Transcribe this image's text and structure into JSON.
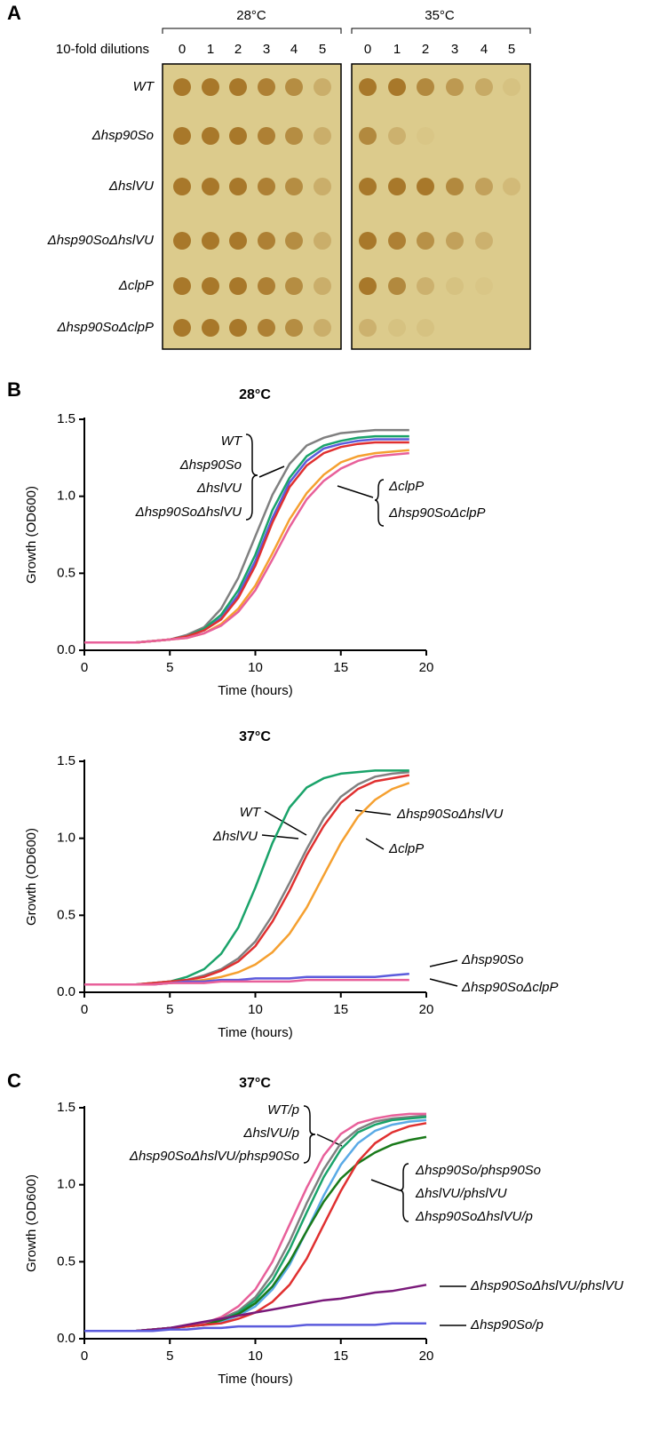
{
  "panel_a": {
    "label": "A",
    "temperatures": [
      "28°C",
      "35°C"
    ],
    "dilution_label": "10-fold dilutions",
    "dilutions": [
      0,
      1,
      2,
      3,
      4,
      5
    ],
    "strains": [
      "WT",
      "Δhsp90So",
      "ΔhslVU",
      "Δhsp90SoΔhslVU",
      "ΔclpP",
      "Δhsp90SoΔclpP"
    ]
  },
  "panel_b_label": "B",
  "panel_c_label": "C",
  "chart_data": [
    {
      "type": "line",
      "title": "28°C",
      "x_label": "Time (hours)",
      "y_label": "Growth (OD600)",
      "x": [
        0,
        1,
        2,
        3,
        4,
        5,
        6,
        7,
        8,
        9,
        10,
        11,
        12,
        13,
        14,
        15,
        16,
        17,
        18,
        19
      ],
      "xlim": [
        0,
        20
      ],
      "xticks": [
        0,
        5,
        10,
        15,
        20
      ],
      "ylim": [
        0,
        1.5
      ],
      "yticks": [
        {
          "value": 0,
          "label": "0.0"
        },
        0.5,
        {
          "value": 1,
          "label": "1.0"
        },
        1.5
      ],
      "series": [
        {
          "name": "WT",
          "color": "#808080",
          "values": [
            0.05,
            0.05,
            0.05,
            0.05,
            0.06,
            0.07,
            0.1,
            0.15,
            0.27,
            0.47,
            0.74,
            1.01,
            1.21,
            1.33,
            1.38,
            1.41,
            1.42,
            1.43,
            1.43,
            1.43
          ]
        },
        {
          "name": "Δhsp90So",
          "color": "#5b5bdc",
          "values": [
            0.05,
            0.05,
            0.05,
            0.05,
            0.06,
            0.07,
            0.09,
            0.13,
            0.21,
            0.36,
            0.58,
            0.86,
            1.09,
            1.23,
            1.31,
            1.34,
            1.36,
            1.37,
            1.37,
            1.37
          ]
        },
        {
          "name": "ΔhslVU",
          "color": "#1aa36a",
          "values": [
            0.05,
            0.05,
            0.05,
            0.05,
            0.06,
            0.07,
            0.09,
            0.14,
            0.23,
            0.39,
            0.62,
            0.91,
            1.12,
            1.26,
            1.33,
            1.36,
            1.38,
            1.39,
            1.39,
            1.39
          ]
        },
        {
          "name": "Δhsp90SoΔhslVU",
          "color": "#e03030",
          "values": [
            0.05,
            0.05,
            0.05,
            0.05,
            0.06,
            0.07,
            0.09,
            0.13,
            0.2,
            0.34,
            0.55,
            0.83,
            1.06,
            1.2,
            1.28,
            1.32,
            1.34,
            1.35,
            1.35,
            1.35
          ]
        },
        {
          "name": "ΔclpP",
          "color": "#f5a030",
          "values": [
            0.05,
            0.05,
            0.05,
            0.05,
            0.06,
            0.07,
            0.08,
            0.11,
            0.17,
            0.27,
            0.42,
            0.63,
            0.85,
            1.02,
            1.14,
            1.22,
            1.26,
            1.28,
            1.29,
            1.3
          ]
        },
        {
          "name": "Δhsp90SoΔclpP",
          "color": "#e8609a",
          "values": [
            0.05,
            0.05,
            0.05,
            0.05,
            0.06,
            0.07,
            0.08,
            0.11,
            0.16,
            0.25,
            0.39,
            0.59,
            0.8,
            0.98,
            1.1,
            1.18,
            1.23,
            1.26,
            1.27,
            1.28
          ]
        }
      ]
    },
    {
      "type": "line",
      "title": "37°C",
      "x_label": "Time (hours)",
      "y_label": "Growth (OD600)",
      "x": [
        0,
        1,
        2,
        3,
        4,
        5,
        6,
        7,
        8,
        9,
        10,
        11,
        12,
        13,
        14,
        15,
        16,
        17,
        18,
        19
      ],
      "xlim": [
        0,
        20
      ],
      "xticks": [
        0,
        5,
        10,
        15,
        20
      ],
      "ylim": [
        0,
        1.5
      ],
      "yticks": [
        {
          "value": 0,
          "label": "0.0"
        },
        0.5,
        {
          "value": 1,
          "label": "1.0"
        },
        1.5
      ],
      "series": [
        {
          "name": "WT",
          "color": "#808080",
          "values": [
            0.05,
            0.05,
            0.05,
            0.05,
            0.06,
            0.07,
            0.08,
            0.11,
            0.15,
            0.22,
            0.33,
            0.5,
            0.71,
            0.93,
            1.13,
            1.27,
            1.35,
            1.4,
            1.42,
            1.43
          ]
        },
        {
          "name": "ΔhslVU",
          "color": "#1aa36a",
          "values": [
            0.05,
            0.05,
            0.05,
            0.05,
            0.06,
            0.07,
            0.1,
            0.15,
            0.25,
            0.42,
            0.68,
            0.97,
            1.2,
            1.33,
            1.39,
            1.42,
            1.43,
            1.44,
            1.44,
            1.44
          ]
        },
        {
          "name": "Δhsp90SoΔhslVU",
          "color": "#e03030",
          "values": [
            0.05,
            0.05,
            0.05,
            0.05,
            0.06,
            0.07,
            0.08,
            0.1,
            0.14,
            0.2,
            0.3,
            0.46,
            0.66,
            0.89,
            1.08,
            1.23,
            1.32,
            1.37,
            1.39,
            1.41
          ]
        },
        {
          "name": "ΔclpP",
          "color": "#f5a030",
          "values": [
            0.05,
            0.05,
            0.05,
            0.05,
            0.05,
            0.06,
            0.07,
            0.08,
            0.1,
            0.13,
            0.18,
            0.26,
            0.38,
            0.55,
            0.76,
            0.97,
            1.14,
            1.25,
            1.32,
            1.36
          ]
        },
        {
          "name": "Δhsp90So",
          "color": "#5b5bdc",
          "values": [
            0.05,
            0.05,
            0.05,
            0.05,
            0.05,
            0.06,
            0.07,
            0.07,
            0.08,
            0.08,
            0.09,
            0.09,
            0.09,
            0.1,
            0.1,
            0.1,
            0.1,
            0.1,
            0.11,
            0.12
          ]
        },
        {
          "name": "Δhsp90SoΔclpP",
          "color": "#e8609a",
          "values": [
            0.05,
            0.05,
            0.05,
            0.05,
            0.05,
            0.06,
            0.06,
            0.06,
            0.07,
            0.07,
            0.07,
            0.07,
            0.07,
            0.08,
            0.08,
            0.08,
            0.08,
            0.08,
            0.08,
            0.08
          ]
        }
      ]
    },
    {
      "type": "line",
      "title": "37°C",
      "x_label": "Time (hours)",
      "y_label": "Growth (OD600)",
      "x": [
        0,
        1,
        2,
        3,
        4,
        5,
        6,
        7,
        8,
        9,
        10,
        11,
        12,
        13,
        14,
        15,
        16,
        17,
        18,
        19,
        20
      ],
      "xlim": [
        0,
        20
      ],
      "xticks": [
        0,
        5,
        10,
        15,
        20
      ],
      "ylim": [
        0,
        1.5
      ],
      "yticks": [
        {
          "value": 0,
          "label": "0.0"
        },
        0.5,
        {
          "value": 1,
          "label": "1.0"
        },
        1.5
      ],
      "series": [
        {
          "name": "WT/p",
          "color": "#808080",
          "values": [
            0.05,
            0.05,
            0.05,
            0.05,
            0.06,
            0.07,
            0.08,
            0.1,
            0.13,
            0.18,
            0.27,
            0.42,
            0.63,
            0.88,
            1.1,
            1.27,
            1.36,
            1.41,
            1.43,
            1.44,
            1.45
          ]
        },
        {
          "name": "ΔhslVU/p",
          "color": "#1aa36a",
          "values": [
            0.05,
            0.05,
            0.05,
            0.05,
            0.06,
            0.07,
            0.08,
            0.09,
            0.12,
            0.17,
            0.25,
            0.38,
            0.58,
            0.82,
            1.05,
            1.23,
            1.34,
            1.39,
            1.42,
            1.43,
            1.44
          ]
        },
        {
          "name": "Δhsp90SoΔhslVU/phsp90So",
          "color": "#e8609a",
          "values": [
            0.05,
            0.05,
            0.05,
            0.05,
            0.06,
            0.07,
            0.08,
            0.1,
            0.14,
            0.21,
            0.32,
            0.5,
            0.74,
            0.98,
            1.19,
            1.33,
            1.4,
            1.43,
            1.45,
            1.46,
            1.46
          ]
        },
        {
          "name": "Δhsp90So/phsp90So",
          "color": "#5aaae6",
          "values": [
            0.05,
            0.05,
            0.05,
            0.05,
            0.06,
            0.07,
            0.08,
            0.09,
            0.11,
            0.15,
            0.21,
            0.32,
            0.48,
            0.7,
            0.93,
            1.13,
            1.27,
            1.35,
            1.39,
            1.41,
            1.42
          ]
        },
        {
          "name": "ΔhslVU/phslVU",
          "color": "#1a7a1a",
          "values": [
            0.05,
            0.05,
            0.05,
            0.05,
            0.06,
            0.07,
            0.08,
            0.09,
            0.12,
            0.16,
            0.23,
            0.34,
            0.5,
            0.7,
            0.89,
            1.04,
            1.14,
            1.21,
            1.26,
            1.29,
            1.31
          ]
        },
        {
          "name": "Δhsp90SoΔhslVU/p",
          "color": "#e03030",
          "values": [
            0.05,
            0.05,
            0.05,
            0.05,
            0.06,
            0.07,
            0.08,
            0.09,
            0.1,
            0.13,
            0.17,
            0.24,
            0.35,
            0.52,
            0.74,
            0.96,
            1.15,
            1.27,
            1.34,
            1.38,
            1.4
          ]
        },
        {
          "name": "Δhsp90SoΔhslVU/phslVU",
          "color": "#7a1a7a",
          "values": [
            0.05,
            0.05,
            0.05,
            0.05,
            0.06,
            0.07,
            0.09,
            0.11,
            0.13,
            0.15,
            0.17,
            0.19,
            0.21,
            0.23,
            0.25,
            0.26,
            0.28,
            0.3,
            0.31,
            0.33,
            0.35
          ]
        },
        {
          "name": "Δhsp90So/p",
          "color": "#5b5bdc",
          "values": [
            0.05,
            0.05,
            0.05,
            0.05,
            0.05,
            0.06,
            0.06,
            0.07,
            0.07,
            0.08,
            0.08,
            0.08,
            0.08,
            0.09,
            0.09,
            0.09,
            0.09,
            0.09,
            0.1,
            0.1,
            0.1
          ]
        }
      ]
    }
  ]
}
